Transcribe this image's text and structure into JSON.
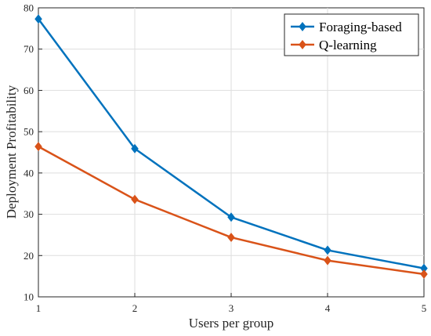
{
  "chart_data": {
    "type": "line",
    "title": "",
    "xlabel": "Users per group",
    "ylabel": "Deployment Profitability",
    "x": [
      1,
      2,
      3,
      4,
      5
    ],
    "xlim": [
      1,
      5
    ],
    "ylim": [
      10,
      80
    ],
    "xticks": [
      "1",
      "2",
      "3",
      "4",
      "5"
    ],
    "yticks": [
      "10",
      "20",
      "30",
      "40",
      "50",
      "60",
      "70",
      "80"
    ],
    "grid": true,
    "legend_position": "top-right",
    "marker": "diamond",
    "series": [
      {
        "name": "Foraging-based",
        "color": "#0072BD",
        "values": [
          77.3,
          45.9,
          29.3,
          21.3,
          16.9
        ]
      },
      {
        "name": "Q-learning",
        "color": "#D95319",
        "values": [
          46.4,
          33.6,
          24.4,
          18.8,
          15.5
        ]
      }
    ]
  }
}
